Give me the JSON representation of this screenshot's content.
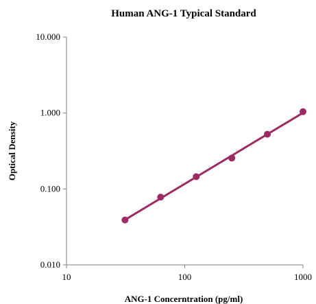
{
  "chart_data": {
    "type": "scatter",
    "title": "Human ANG-1 Typical Standard",
    "xlabel": "ANG-1 Concerntration (pg/ml)",
    "ylabel": "Optical Density",
    "x_scale": "log",
    "y_scale": "log",
    "xlim": [
      10,
      1000
    ],
    "ylim": [
      0.01,
      10
    ],
    "x_ticks": [
      10,
      100,
      1000
    ],
    "x_tick_labels": [
      "10",
      "100",
      "1000"
    ],
    "y_ticks": [
      0.01,
      0.1,
      1,
      10
    ],
    "y_tick_labels": [
      "0.010",
      "0.100",
      "1.000",
      "10.000"
    ],
    "grid": false,
    "series": [
      {
        "x": [
          31.25,
          62.5,
          125,
          250,
          500,
          1000
        ],
        "y": [
          0.039,
          0.078,
          0.145,
          0.255,
          0.525,
          1.04
        ],
        "color": "#9b2b62",
        "marker": "circle",
        "trendline": true
      }
    ]
  }
}
